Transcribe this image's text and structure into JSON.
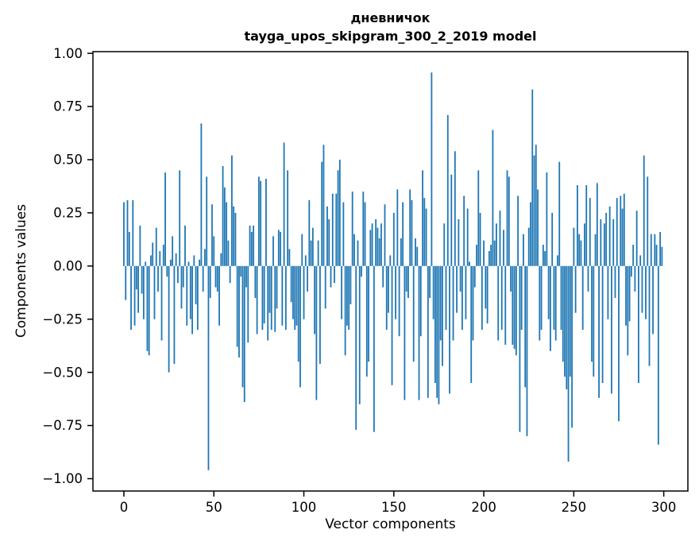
{
  "page": {
    "background": "#ffffff"
  },
  "chart_data": {
    "type": "bar",
    "title": "дневничок",
    "subtitle": "tayga_upos_skipgram_300_2_2019 model",
    "xlabel": "Vector components",
    "ylabel": "Components values",
    "bar_color": "#1f77b4",
    "axis_color": "#000000",
    "grid": false,
    "legend": false,
    "xlim": [
      -17.2,
      313.4
    ],
    "ylim": [
      -1.058,
      1.008
    ],
    "x_ticks": [
      {
        "value": 0,
        "label": "0"
      },
      {
        "value": 50,
        "label": "50"
      },
      {
        "value": 100,
        "label": "100"
      },
      {
        "value": 150,
        "label": "150"
      },
      {
        "value": 200,
        "label": "200"
      },
      {
        "value": 250,
        "label": "250"
      },
      {
        "value": 300,
        "label": "300"
      }
    ],
    "y_ticks": [
      {
        "value": 1.0,
        "label": "1.00"
      },
      {
        "value": 0.75,
        "label": "0.75"
      },
      {
        "value": 0.5,
        "label": "0.50"
      },
      {
        "value": 0.25,
        "label": "0.25"
      },
      {
        "value": 0.0,
        "label": "0.00"
      },
      {
        "value": -0.25,
        "label": "−0.25"
      },
      {
        "value": -0.5,
        "label": "−0.50"
      },
      {
        "value": -0.75,
        "label": "−0.75"
      },
      {
        "value": -1.0,
        "label": "−1.00"
      }
    ],
    "n_components": 300,
    "bar_data_width": 0.8,
    "values": [
      0.3,
      -0.16,
      0.31,
      0.16,
      -0.3,
      0.31,
      -0.28,
      -0.11,
      -0.22,
      0.19,
      -0.13,
      -0.25,
      0.02,
      -0.4,
      -0.42,
      0.05,
      0.11,
      -0.25,
      0.18,
      -0.12,
      0.07,
      -0.35,
      0.1,
      0.44,
      -0.05,
      -0.5,
      0.03,
      0.14,
      -0.46,
      0.06,
      -0.08,
      0.45,
      -0.2,
      -0.1,
      0.19,
      -0.28,
      0.02,
      -0.25,
      -0.32,
      0.05,
      -0.18,
      -0.3,
      0.03,
      0.67,
      -0.12,
      0.08,
      0.42,
      -0.96,
      -0.15,
      0.29,
      0.14,
      -0.1,
      -0.12,
      -0.28,
      0.06,
      0.47,
      0.37,
      0.3,
      0.12,
      -0.08,
      0.52,
      0.28,
      0.25,
      -0.38,
      -0.43,
      -0.05,
      -0.57,
      -0.64,
      -0.1,
      -0.36,
      0.19,
      0.16,
      0.19,
      -0.15,
      -0.32,
      0.42,
      0.4,
      -0.3,
      -0.27,
      0.41,
      -0.35,
      -0.22,
      -0.3,
      0.14,
      -0.31,
      -0.2,
      0.17,
      0.16,
      -0.28,
      0.58,
      -0.3,
      0.45,
      0.08,
      -0.17,
      -0.25,
      -0.3,
      -0.28,
      -0.45,
      -0.57,
      0.15,
      -0.25,
      0.05,
      -0.12,
      0.31,
      0.12,
      0.18,
      -0.32,
      -0.63,
      0.12,
      -0.46,
      0.49,
      0.57,
      -0.2,
      0.28,
      0.22,
      -0.1,
      0.34,
      -0.08,
      0.34,
      0.45,
      0.5,
      -0.25,
      0.3,
      -0.42,
      -0.28,
      -0.3,
      -0.18,
      0.35,
      0.15,
      -0.77,
      0.12,
      -0.65,
      -0.05,
      0.35,
      0.3,
      -0.52,
      -0.45,
      0.17,
      0.2,
      -0.78,
      0.22,
      0.18,
      0.13,
      0.2,
      -0.1,
      0.29,
      -0.3,
      -0.22,
      0.05,
      -0.56,
      0.25,
      -0.25,
      0.36,
      -0.33,
      0.13,
      0.3,
      -0.63,
      -0.12,
      -0.15,
      0.36,
      0.31,
      -0.45,
      0.13,
      0.09,
      -0.63,
      -0.33,
      0.45,
      0.32,
      0.27,
      -0.62,
      -0.15,
      0.91,
      -0.25,
      -0.55,
      -0.62,
      -0.65,
      -0.35,
      -0.47,
      0.2,
      -0.3,
      0.71,
      -0.6,
      0.43,
      -0.35,
      0.54,
      -0.22,
      0.22,
      -0.12,
      -0.3,
      0.33,
      -0.25,
      0.27,
      0.02,
      -0.55,
      -0.35,
      -0.1,
      0.1,
      0.45,
      0.25,
      -0.3,
      0.12,
      -0.2,
      -0.27,
      0.07,
      0.1,
      0.64,
      0.12,
      0.2,
      -0.35,
      0.26,
      -0.3,
      0.17,
      -0.37,
      0.45,
      0.42,
      -0.12,
      -0.37,
      -0.39,
      -0.42,
      0.33,
      -0.78,
      -0.3,
      0.15,
      -0.57,
      -0.8,
      0.18,
      0.3,
      0.83,
      0.52,
      0.57,
      0.36,
      -0.35,
      -0.3,
      0.1,
      0.07,
      0.44,
      -0.25,
      -0.4,
      0.25,
      -0.3,
      -0.35,
      0.05,
      0.49,
      -0.3,
      -0.45,
      -0.52,
      -0.58,
      -0.92,
      -0.52,
      -0.76,
      0.18,
      -0.22,
      0.38,
      0.15,
      0.12,
      -0.3,
      0.2,
      0.38,
      -0.12,
      0.32,
      -0.45,
      -0.52,
      0.15,
      0.39,
      -0.62,
      0.22,
      -0.55,
      0.2,
      0.25,
      -0.25,
      0.28,
      -0.6,
      0.22,
      -0.15,
      0.32,
      -0.73,
      0.33,
      0.27,
      0.34,
      -0.28,
      -0.42,
      -0.26,
      -0.05,
      0.1,
      -0.12,
      0.26,
      -0.55,
      0.05,
      -0.22,
      0.52,
      -0.25,
      0.42,
      -0.47,
      0.15,
      -0.32,
      0.15,
      0.1,
      -0.84,
      0.16,
      0.09
    ]
  }
}
